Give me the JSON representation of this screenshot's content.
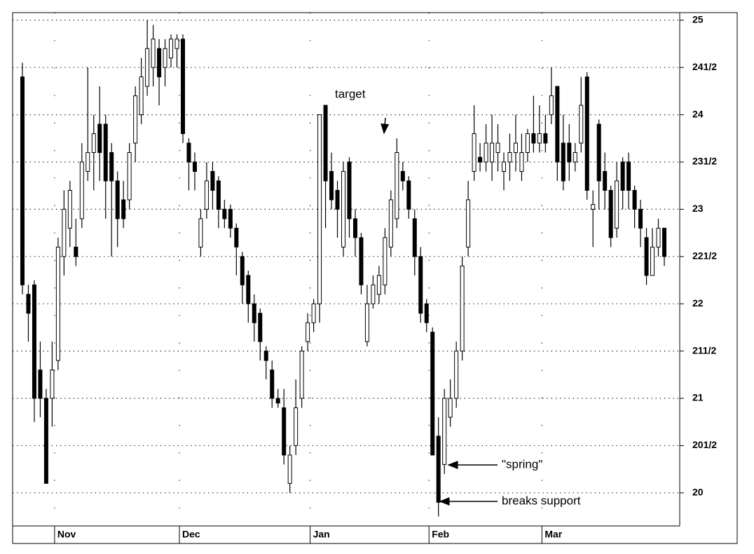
{
  "chart_data": {
    "type": "candlestick",
    "categories": [
      null,
      null,
      null,
      null,
      null,
      null,
      "Nov",
      null,
      null,
      null,
      null,
      null,
      null,
      null,
      null,
      null,
      null,
      null,
      null,
      null,
      null,
      null,
      null,
      null,
      null,
      null,
      null,
      "Dec",
      null,
      null,
      null,
      null,
      null,
      null,
      null,
      null,
      null,
      null,
      null,
      null,
      null,
      null,
      null,
      null,
      null,
      null,
      null,
      null,
      null,
      "Jan",
      null,
      null,
      null,
      null,
      null,
      null,
      null,
      null,
      null,
      null,
      null,
      null,
      null,
      null,
      null,
      null,
      null,
      null,
      null,
      "Feb",
      null,
      null,
      null,
      null,
      null,
      null,
      null,
      null,
      null,
      null,
      null,
      null,
      null,
      null,
      null,
      null,
      null,
      null,
      "Mar",
      null,
      null,
      null,
      null,
      null,
      null,
      null,
      null,
      null,
      null,
      null,
      null,
      null,
      null,
      null,
      null,
      null,
      null,
      null,
      null
    ],
    "open": [
      24.4,
      22.1,
      22.2,
      21.3,
      21.0,
      21.0,
      21.4,
      22.5,
      22.8,
      22.6,
      22.9,
      23.4,
      23.6,
      23.9,
      23.9,
      23.6,
      23.3,
      23.1,
      23.1,
      23.7,
      24.0,
      24.3,
      24.5,
      24.7,
      24.5,
      24.6,
      24.7,
      24.8,
      23.7,
      23.5,
      22.6,
      23.0,
      23.4,
      23.3,
      23.0,
      23.0,
      22.8,
      22.5,
      22.3,
      22.0,
      21.9,
      21.5,
      21.3,
      21.0,
      20.9,
      20.1,
      20.5,
      21.0,
      21.6,
      21.8,
      22.0,
      24.1,
      23.4,
      23.2,
      22.6,
      23.5,
      22.9,
      22.7,
      21.6,
      22.0,
      22.1,
      22.2,
      22.6,
      22.9,
      23.4,
      23.3,
      22.9,
      22.5,
      22.0,
      21.7,
      20.6,
      20.3,
      20.8,
      21.0,
      21.5,
      22.6,
      23.4,
      23.55,
      23.5,
      23.5,
      23.6,
      23.4,
      23.5,
      23.6,
      23.4,
      23.6,
      23.8,
      23.7,
      23.8,
      24.0,
      24.3,
      23.7,
      23.7,
      23.5,
      23.7,
      24.4,
      23.0,
      23.9,
      23.4,
      23.2,
      22.8,
      23.5,
      23.5,
      23.2,
      23.0,
      22.7,
      22.3,
      22.6,
      22.8
    ],
    "high": [
      24.55,
      22.2,
      22.25,
      21.6,
      21.1,
      21.6,
      22.7,
      23.2,
      23.3,
      22.9,
      23.7,
      24.5,
      24.0,
      24.3,
      24.0,
      23.7,
      23.4,
      23.3,
      23.7,
      24.3,
      24.6,
      25.0,
      24.95,
      24.8,
      24.8,
      24.85,
      24.85,
      24.85,
      23.75,
      23.6,
      23.0,
      23.5,
      23.5,
      23.35,
      23.1,
      23.05,
      22.85,
      22.55,
      22.35,
      22.1,
      21.95,
      21.55,
      21.4,
      21.1,
      21.1,
      20.5,
      21.2,
      21.55,
      21.9,
      22.05,
      24.0,
      24.1,
      23.6,
      23.3,
      23.5,
      23.55,
      23.0,
      22.75,
      22.2,
      22.3,
      22.4,
      22.8,
      23.2,
      23.75,
      23.5,
      23.35,
      23.0,
      22.6,
      22.05,
      21.75,
      20.8,
      21.1,
      21.2,
      21.6,
      22.5,
      23.3,
      24.1,
      23.7,
      23.9,
      24.0,
      23.9,
      23.6,
      23.8,
      24.0,
      23.8,
      23.85,
      24.2,
      24.1,
      24.0,
      24.5,
      24.3,
      24.0,
      23.9,
      23.7,
      24.4,
      24.45,
      23.2,
      23.95,
      23.6,
      23.25,
      23.5,
      23.55,
      23.6,
      23.25,
      23.1,
      22.8,
      22.8,
      22.9,
      22.8
    ],
    "low": [
      22.1,
      21.6,
      20.75,
      20.8,
      20.1,
      20.7,
      21.3,
      22.3,
      22.6,
      22.4,
      22.8,
      23.3,
      23.2,
      23.3,
      22.9,
      22.5,
      22.6,
      22.8,
      23.0,
      23.5,
      23.9,
      24.2,
      24.3,
      24.1,
      24.3,
      24.5,
      24.5,
      23.7,
      23.2,
      23.2,
      22.5,
      22.9,
      23.0,
      22.8,
      22.8,
      22.7,
      22.3,
      22.0,
      21.8,
      21.6,
      21.4,
      21.2,
      20.9,
      20.9,
      20.3,
      20.0,
      20.4,
      20.9,
      21.5,
      21.7,
      21.8,
      22.8,
      23.0,
      22.7,
      22.5,
      22.7,
      22.5,
      22.1,
      21.55,
      21.95,
      22.0,
      22.1,
      22.5,
      22.8,
      23.2,
      22.9,
      22.3,
      21.8,
      21.7,
      20.4,
      19.75,
      20.2,
      20.7,
      20.9,
      21.4,
      22.5,
      23.3,
      23.4,
      23.4,
      23.3,
      23.4,
      23.2,
      23.3,
      23.4,
      23.3,
      23.5,
      23.6,
      23.6,
      23.6,
      23.9,
      23.3,
      23.2,
      23.3,
      23.4,
      23.6,
      23.1,
      22.6,
      23.0,
      23.0,
      22.6,
      22.7,
      23.0,
      23.0,
      22.8,
      22.6,
      22.2,
      22.3,
      22.5,
      22.4
    ],
    "close": [
      22.2,
      21.9,
      21.0,
      21.0,
      20.1,
      21.3,
      22.6,
      23.0,
      23.2,
      22.5,
      23.5,
      23.6,
      23.8,
      23.6,
      23.3,
      23.3,
      22.9,
      22.9,
      23.6,
      24.2,
      24.4,
      24.7,
      24.8,
      24.4,
      24.7,
      24.8,
      24.8,
      23.8,
      23.5,
      23.4,
      22.9,
      23.3,
      23.2,
      23.0,
      22.9,
      22.8,
      22.6,
      22.2,
      22.0,
      21.8,
      21.6,
      21.4,
      21.0,
      20.95,
      20.4,
      20.4,
      20.9,
      21.5,
      21.8,
      22.0,
      24.0,
      23.3,
      23.1,
      23.0,
      23.4,
      22.9,
      22.7,
      22.2,
      22.0,
      22.2,
      22.3,
      22.7,
      23.1,
      23.6,
      23.3,
      23.0,
      22.5,
      21.9,
      21.8,
      20.4,
      19.9,
      21.0,
      21.0,
      21.5,
      22.4,
      23.1,
      23.8,
      23.5,
      23.7,
      23.7,
      23.7,
      23.5,
      23.6,
      23.7,
      23.6,
      23.8,
      23.7,
      23.8,
      23.7,
      24.2,
      23.5,
      23.3,
      23.5,
      23.6,
      24.1,
      23.2,
      23.05,
      23.3,
      23.2,
      22.7,
      23.3,
      23.2,
      23.2,
      23.0,
      22.8,
      22.3,
      22.6,
      22.8,
      22.5
    ],
    "ylim": [
      19.65,
      25.08
    ],
    "yticks": [
      20,
      {
        "value": 20.5,
        "label": "201/2"
      },
      21,
      {
        "value": 21.5,
        "label": "211/2"
      },
      22,
      {
        "value": 22.5,
        "label": "221/2"
      },
      23,
      {
        "value": 23.5,
        "label": "231/2"
      },
      24,
      {
        "value": 24.5,
        "label": "241/2"
      },
      25
    ],
    "grid": true,
    "annotations": [
      "target",
      "\"spring\"",
      "breaks support"
    ]
  }
}
